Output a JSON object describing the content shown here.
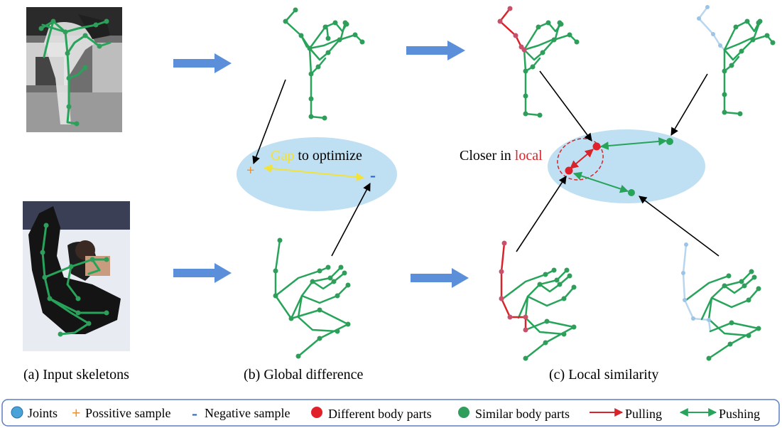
{
  "captions": {
    "input": "(a) Input skeletons",
    "global": "(b) Global difference",
    "local": "(c) Local similarity"
  },
  "annotations": {
    "gap_word": "Gap",
    "gap_rest": " to optimize",
    "positive_symbol": "+",
    "negative_symbol": "-",
    "closer_word": "Closer in ",
    "local_word": "local"
  },
  "legend": {
    "joints": "Joints",
    "positive": "Possitive sample",
    "negative": "Negative sample",
    "different_parts": "Different body parts",
    "similar_parts": "Similar body parts",
    "pulling": "Pulling",
    "pushing": "Pushing",
    "symbols": {
      "positive": "+",
      "negative": "-"
    }
  },
  "colors": {
    "skeleton_green": "#27a35a",
    "joint_green": "#2f9e5b",
    "different_red": "#d9232a",
    "faded_blue": "#b9d6ef",
    "ellipse_fill": "#bfe0f3",
    "flow_arrow": "#5b8fd9",
    "gap_yellow": "#f2e23a",
    "positive_orange": "#f0922b",
    "negative_blue": "#2b63c7",
    "legend_joint": "#4aa3d8",
    "legend_border": "#5b7fbf"
  }
}
